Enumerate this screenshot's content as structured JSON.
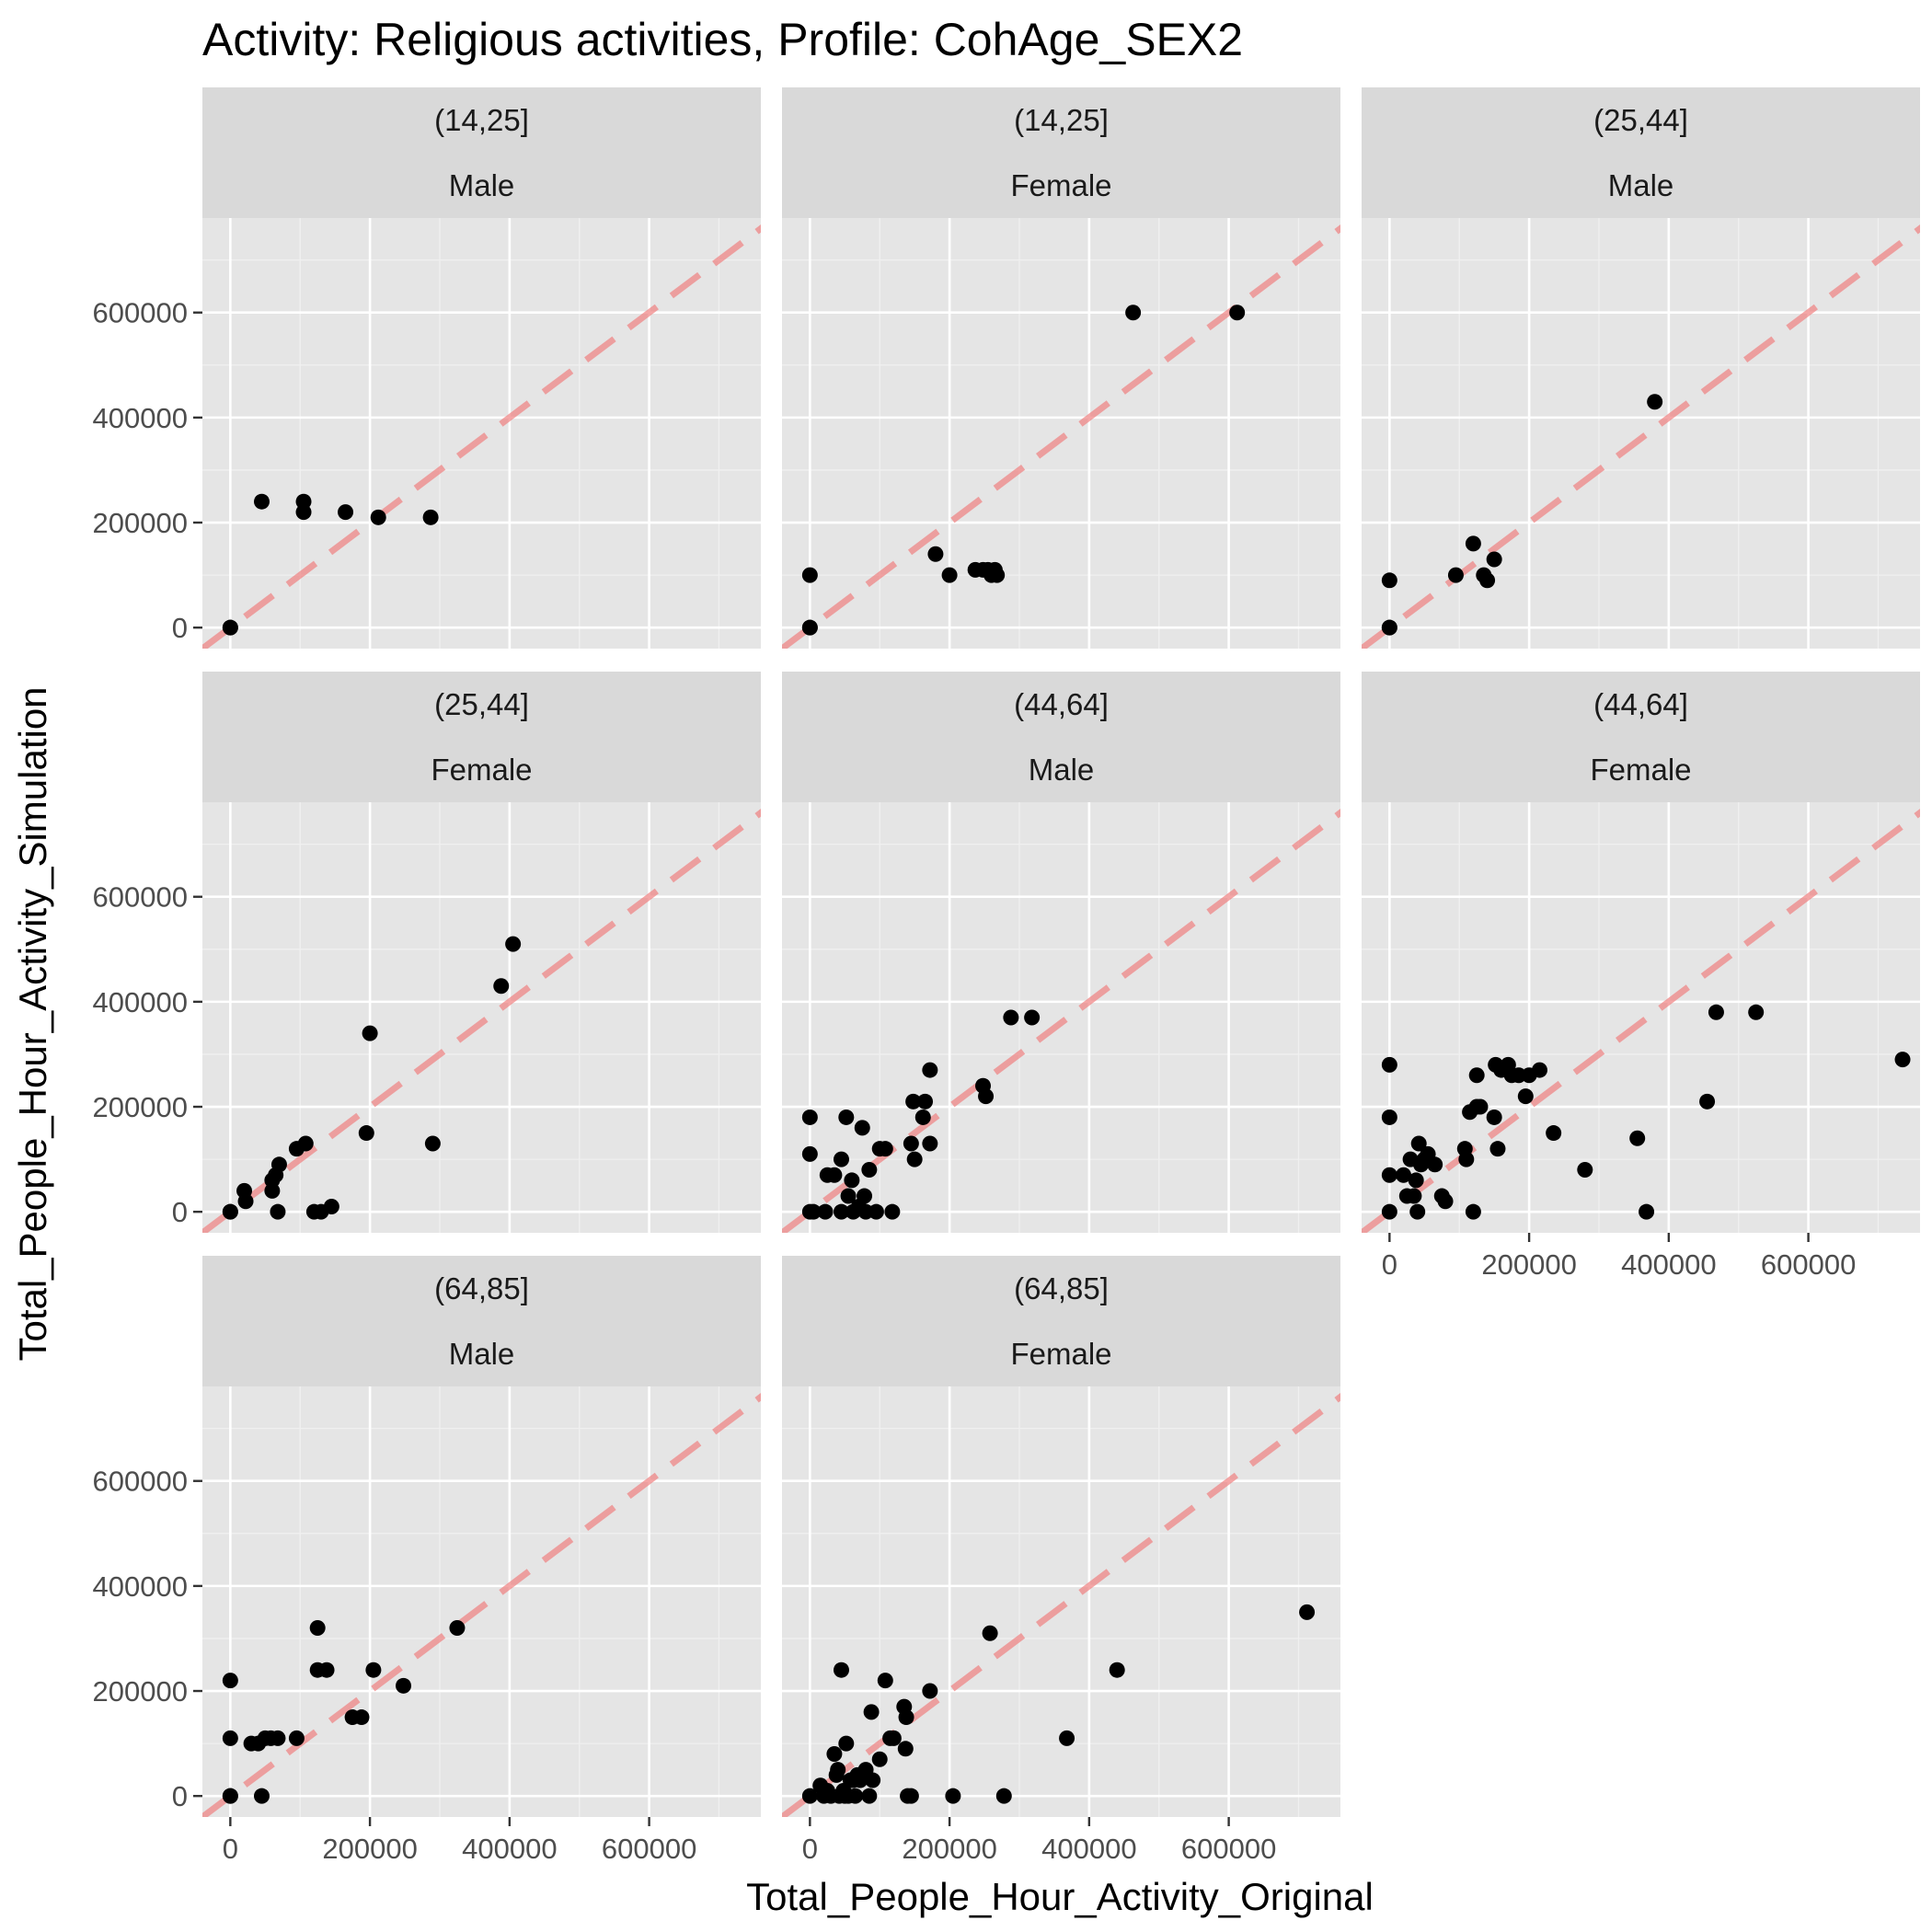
{
  "chart_data": {
    "type": "scatter",
    "title": "Activity: Religious activities, Profile: CohAge_SEX2",
    "xlabel": "Total_People_Hour_Activity_Original",
    "ylabel": "Total_People_Hour_Activity_Simulation",
    "xlim": [
      -40000,
      760000
    ],
    "ylim": [
      -40000,
      780000
    ],
    "x_ticks": [
      0,
      200000,
      400000,
      600000
    ],
    "y_ticks": [
      0,
      200000,
      400000,
      600000
    ],
    "tick_labels": [
      "0",
      "200000",
      "400000",
      "600000"
    ],
    "reference_line": "y = x (dashed)",
    "reference_color": "#f08080",
    "point_color": "#000000",
    "grid": true,
    "facets": [
      {
        "age": "(14,25]",
        "sex": "Male",
        "points": [
          [
            0,
            0
          ],
          [
            0,
            0
          ],
          [
            45000,
            240000
          ],
          [
            105000,
            240000
          ],
          [
            105000,
            220000
          ],
          [
            165000,
            220000
          ],
          [
            212000,
            210000
          ],
          [
            287000,
            210000
          ]
        ]
      },
      {
        "age": "(14,25]",
        "sex": "Female",
        "points": [
          [
            0,
            0
          ],
          [
            0,
            0
          ],
          [
            0,
            100000
          ],
          [
            180000,
            140000
          ],
          [
            200000,
            100000
          ],
          [
            237000,
            110000
          ],
          [
            248000,
            110000
          ],
          [
            255000,
            110000
          ],
          [
            260000,
            100000
          ],
          [
            265000,
            110000
          ],
          [
            268000,
            100000
          ],
          [
            463000,
            600000
          ],
          [
            612000,
            600000
          ]
        ]
      },
      {
        "age": "(25,44]",
        "sex": "Male",
        "points": [
          [
            0,
            0
          ],
          [
            0,
            0
          ],
          [
            0,
            90000
          ],
          [
            95000,
            100000
          ],
          [
            120000,
            160000
          ],
          [
            135000,
            100000
          ],
          [
            140000,
            90000
          ],
          [
            150000,
            130000
          ],
          [
            380000,
            430000
          ]
        ]
      },
      {
        "age": "(25,44]",
        "sex": "Female",
        "points": [
          [
            0,
            0
          ],
          [
            0,
            0
          ],
          [
            20000,
            40000
          ],
          [
            22000,
            20000
          ],
          [
            60000,
            40000
          ],
          [
            60000,
            60000
          ],
          [
            65000,
            70000
          ],
          [
            70000,
            90000
          ],
          [
            68000,
            0
          ],
          [
            95000,
            120000
          ],
          [
            108000,
            130000
          ],
          [
            120000,
            0
          ],
          [
            130000,
            0
          ],
          [
            145000,
            10000
          ],
          [
            195000,
            150000
          ],
          [
            200000,
            340000
          ],
          [
            290000,
            130000
          ],
          [
            388000,
            430000
          ],
          [
            405000,
            510000
          ]
        ]
      },
      {
        "age": "(44,64]",
        "sex": "Male",
        "points": [
          [
            0,
            180000
          ],
          [
            0,
            110000
          ],
          [
            0,
            0
          ],
          [
            5000,
            0
          ],
          [
            22000,
            0
          ],
          [
            25000,
            70000
          ],
          [
            35000,
            70000
          ],
          [
            45000,
            100000
          ],
          [
            45000,
            0
          ],
          [
            52000,
            180000
          ],
          [
            55000,
            30000
          ],
          [
            60000,
            60000
          ],
          [
            62000,
            0
          ],
          [
            70000,
            10000
          ],
          [
            75000,
            160000
          ],
          [
            78000,
            30000
          ],
          [
            80000,
            0
          ],
          [
            85000,
            80000
          ],
          [
            95000,
            0
          ],
          [
            100000,
            120000
          ],
          [
            108000,
            120000
          ],
          [
            118000,
            0
          ],
          [
            145000,
            130000
          ],
          [
            148000,
            210000
          ],
          [
            150000,
            100000
          ],
          [
            162000,
            180000
          ],
          [
            165000,
            210000
          ],
          [
            172000,
            270000
          ],
          [
            172000,
            130000
          ],
          [
            248000,
            240000
          ],
          [
            252000,
            220000
          ],
          [
            288000,
            370000
          ],
          [
            318000,
            370000
          ]
        ]
      },
      {
        "age": "(44,64]",
        "sex": "Female",
        "points": [
          [
            0,
            280000
          ],
          [
            0,
            180000
          ],
          [
            0,
            70000
          ],
          [
            0,
            0
          ],
          [
            20000,
            70000
          ],
          [
            25000,
            30000
          ],
          [
            30000,
            100000
          ],
          [
            35000,
            30000
          ],
          [
            38000,
            60000
          ],
          [
            40000,
            0
          ],
          [
            42000,
            130000
          ],
          [
            45000,
            90000
          ],
          [
            50000,
            100000
          ],
          [
            55000,
            110000
          ],
          [
            65000,
            90000
          ],
          [
            75000,
            30000
          ],
          [
            80000,
            20000
          ],
          [
            108000,
            120000
          ],
          [
            110000,
            100000
          ],
          [
            115000,
            190000
          ],
          [
            120000,
            0
          ],
          [
            125000,
            260000
          ],
          [
            125000,
            200000
          ],
          [
            130000,
            200000
          ],
          [
            150000,
            180000
          ],
          [
            152000,
            280000
          ],
          [
            155000,
            120000
          ],
          [
            160000,
            270000
          ],
          [
            170000,
            280000
          ],
          [
            175000,
            260000
          ],
          [
            185000,
            260000
          ],
          [
            195000,
            220000
          ],
          [
            200000,
            260000
          ],
          [
            215000,
            270000
          ],
          [
            235000,
            150000
          ],
          [
            280000,
            80000
          ],
          [
            355000,
            140000
          ],
          [
            368000,
            0
          ],
          [
            455000,
            210000
          ],
          [
            468000,
            380000
          ],
          [
            525000,
            380000
          ],
          [
            735000,
            290000
          ]
        ]
      },
      {
        "age": "(64,85]",
        "sex": "Male",
        "points": [
          [
            0,
            220000
          ],
          [
            0,
            110000
          ],
          [
            0,
            0
          ],
          [
            0,
            0
          ],
          [
            30000,
            100000
          ],
          [
            40000,
            100000
          ],
          [
            45000,
            0
          ],
          [
            50000,
            110000
          ],
          [
            58000,
            110000
          ],
          [
            68000,
            110000
          ],
          [
            95000,
            110000
          ],
          [
            125000,
            320000
          ],
          [
            125000,
            240000
          ],
          [
            138000,
            240000
          ],
          [
            175000,
            150000
          ],
          [
            188000,
            150000
          ],
          [
            205000,
            240000
          ],
          [
            248000,
            210000
          ],
          [
            325000,
            320000
          ]
        ]
      },
      {
        "age": "(64,85]",
        "sex": "Female",
        "points": [
          [
            0,
            0
          ],
          [
            15000,
            20000
          ],
          [
            20000,
            0
          ],
          [
            25000,
            10000
          ],
          [
            30000,
            0
          ],
          [
            35000,
            80000
          ],
          [
            38000,
            40000
          ],
          [
            40000,
            50000
          ],
          [
            42000,
            0
          ],
          [
            45000,
            240000
          ],
          [
            48000,
            10000
          ],
          [
            50000,
            0
          ],
          [
            52000,
            100000
          ],
          [
            55000,
            0
          ],
          [
            58000,
            30000
          ],
          [
            62000,
            30000
          ],
          [
            65000,
            0
          ],
          [
            68000,
            40000
          ],
          [
            72000,
            30000
          ],
          [
            78000,
            40000
          ],
          [
            80000,
            50000
          ],
          [
            85000,
            0
          ],
          [
            88000,
            160000
          ],
          [
            90000,
            30000
          ],
          [
            100000,
            70000
          ],
          [
            108000,
            220000
          ],
          [
            115000,
            110000
          ],
          [
            120000,
            110000
          ],
          [
            135000,
            170000
          ],
          [
            137000,
            90000
          ],
          [
            138000,
            150000
          ],
          [
            140000,
            0
          ],
          [
            145000,
            0
          ],
          [
            172000,
            200000
          ],
          [
            205000,
            0
          ],
          [
            258000,
            310000
          ],
          [
            278000,
            0
          ],
          [
            368000,
            110000
          ],
          [
            440000,
            240000
          ],
          [
            712000,
            350000
          ]
        ]
      }
    ]
  }
}
